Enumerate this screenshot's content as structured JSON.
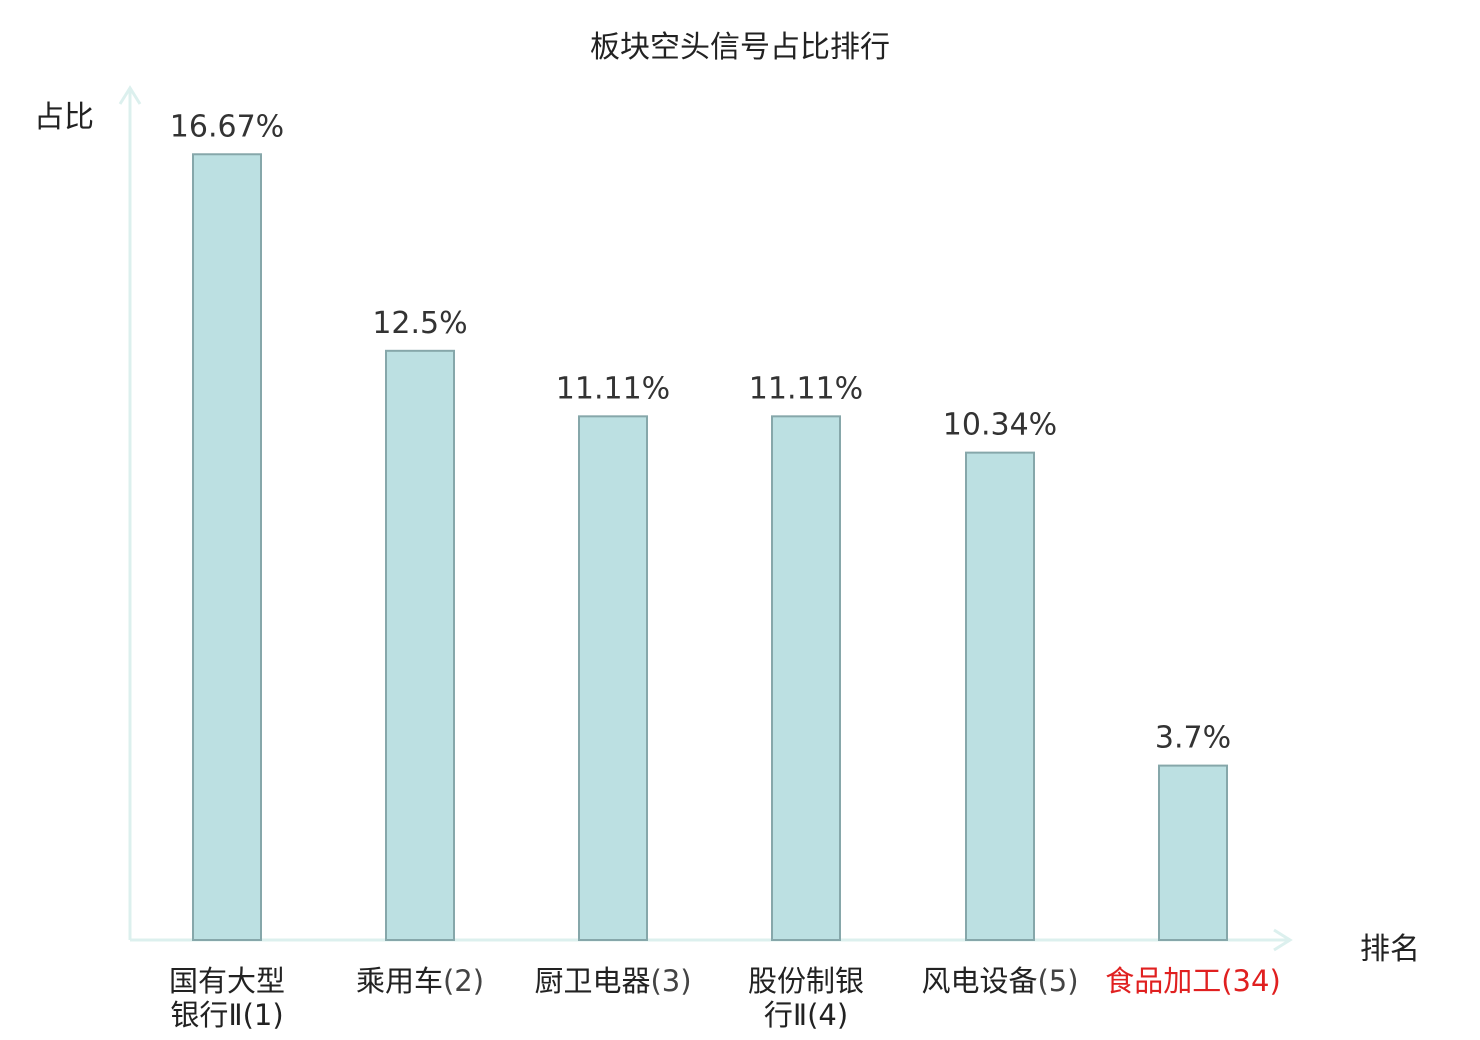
{
  "chart_data": {
    "type": "bar",
    "title": "板块空头信号占比排行",
    "ylabel": "占比",
    "xlabel": "排名",
    "ylim": [
      0,
      17.8
    ],
    "grid": false,
    "categories": [
      {
        "name": "国有大型银行Ⅱ",
        "rank": "(1)",
        "highlight": false
      },
      {
        "name": "乘用车",
        "rank": "(2)",
        "highlight": false
      },
      {
        "name": "厨卫电器",
        "rank": "(3)",
        "highlight": false
      },
      {
        "name": "股份制银行Ⅱ",
        "rank": "(4)",
        "highlight": false
      },
      {
        "name": "风电设备",
        "rank": "(5)",
        "highlight": false
      },
      {
        "name": "食品加工",
        "rank": "(34)",
        "highlight": true
      }
    ],
    "values": [
      16.67,
      12.5,
      11.11,
      11.11,
      10.34,
      3.7
    ],
    "value_labels": [
      "16.67%",
      "12.5%",
      "11.11%",
      "11.11%",
      "10.34%",
      "3.7%"
    ]
  },
  "colors": {
    "bar_fill": "#bce0e2",
    "bar_stroke": "#86a7aa",
    "axis": "#dcf0ee",
    "highlight": "#e02020"
  }
}
